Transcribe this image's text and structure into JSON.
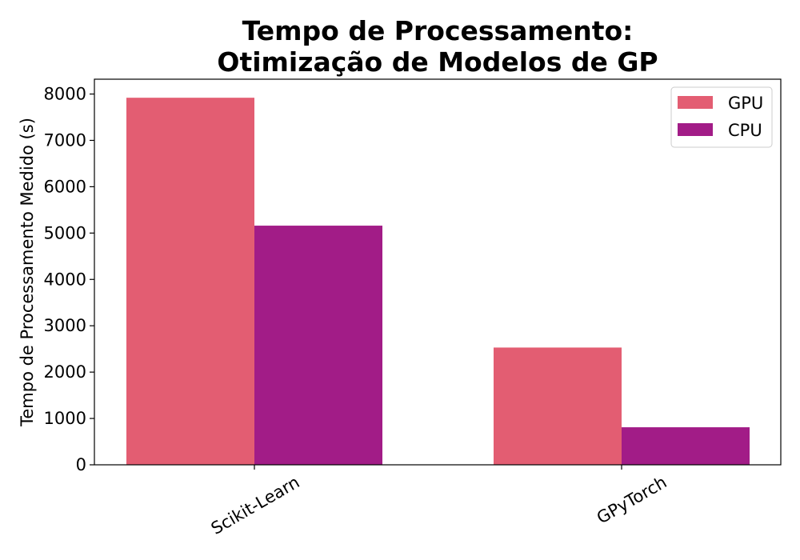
{
  "chart_data": {
    "type": "bar",
    "title_lines": [
      "Tempo de Processamento:",
      "Otimização de Modelos de GP"
    ],
    "xlabel": "",
    "ylabel": "Tempo de Processamento Medido (s)",
    "categories": [
      "Scikit-Learn",
      "GPyTorch"
    ],
    "series": [
      {
        "name": "GPU",
        "color": "#e35d72",
        "values": [
          7920,
          2530
        ]
      },
      {
        "name": "CPU",
        "color": "#a21c87",
        "values": [
          5160,
          810
        ]
      }
    ],
    "ylim": [
      0,
      8320
    ],
    "yticks": [
      0,
      1000,
      2000,
      3000,
      4000,
      5000,
      6000,
      7000,
      8000
    ],
    "ytick_labels": [
      "0",
      "1000",
      "2000",
      "3000",
      "4000",
      "5000",
      "6000",
      "7000",
      "8000"
    ],
    "grid": false,
    "legend_position": "top-right"
  }
}
